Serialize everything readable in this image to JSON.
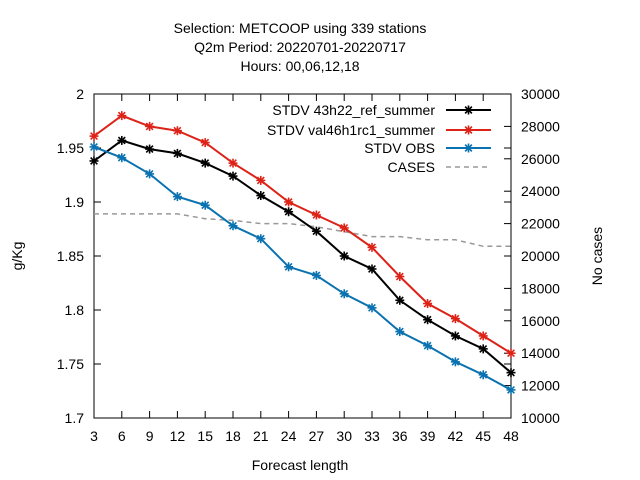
{
  "chart_data": {
    "type": "line",
    "title_lines": [
      "Selection: METCOOP using   339 stations",
      "Q2m   Period: 20220701-20220717",
      "Hours:  00,06,12,18"
    ],
    "xlabel": "Forecast length",
    "ylabel": "g/Kg",
    "y2label": "No cases",
    "x": [
      3,
      6,
      9,
      12,
      15,
      18,
      21,
      24,
      27,
      30,
      33,
      36,
      39,
      42,
      45,
      48
    ],
    "xlim": [
      3,
      48
    ],
    "ylim": [
      1.7,
      2.0
    ],
    "y2lim": [
      10000,
      30000
    ],
    "yticks": [
      "1.7",
      "1.75",
      "1.8",
      "1.85",
      "1.9",
      "1.95",
      "2"
    ],
    "y2ticks": [
      "10000",
      "12000",
      "14000",
      "16000",
      "18000",
      "20000",
      "22000",
      "24000",
      "26000",
      "28000",
      "30000"
    ],
    "grid": false,
    "legend_position": "top-right",
    "series": [
      {
        "name": "STDV 43h22_ref_summer",
        "color": "#000000",
        "axis": "y",
        "style": "solid",
        "values": [
          1.938,
          1.957,
          1.949,
          1.945,
          1.936,
          1.924,
          1.906,
          1.891,
          1.873,
          1.85,
          1.838,
          1.809,
          1.791,
          1.776,
          1.764,
          1.742
        ]
      },
      {
        "name": "STDV val46h1rc1_summer",
        "color": "#dd2318",
        "axis": "y",
        "style": "solid",
        "values": [
          1.961,
          1.98,
          1.97,
          1.966,
          1.955,
          1.936,
          1.92,
          1.9,
          1.888,
          1.876,
          1.858,
          1.831,
          1.806,
          1.792,
          1.776,
          1.76
        ]
      },
      {
        "name": "STDV OBS",
        "color": "#0a72b0",
        "axis": "y",
        "style": "solid",
        "values": [
          1.951,
          1.941,
          1.926,
          1.905,
          1.897,
          1.878,
          1.866,
          1.84,
          1.832,
          1.815,
          1.802,
          1.78,
          1.767,
          1.752,
          1.74,
          1.726
        ]
      },
      {
        "name": "CASES",
        "color": "#999999",
        "axis": "y2",
        "style": "dashed",
        "values": [
          22600,
          22600,
          22600,
          22600,
          22300,
          22200,
          22000,
          22000,
          21800,
          21500,
          21200,
          21200,
          21000,
          21000,
          20600,
          20600
        ]
      }
    ]
  }
}
